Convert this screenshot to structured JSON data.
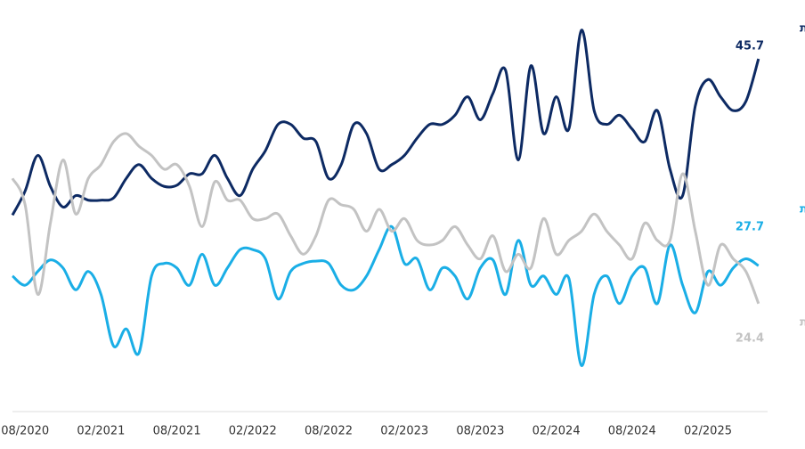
{
  "chart_data": {
    "type": "line",
    "categories": [
      null,
      "08/2020",
      null,
      null,
      null,
      null,
      null,
      "02/2021",
      null,
      null,
      null,
      null,
      null,
      "08/2021",
      null,
      null,
      null,
      null,
      null,
      "02/2022",
      null,
      null,
      null,
      null,
      null,
      "08/2022",
      null,
      null,
      null,
      null,
      null,
      "02/2023",
      null,
      null,
      null,
      null,
      null,
      "08/2023",
      null,
      null,
      null,
      null,
      null,
      "02/2024",
      null,
      null,
      null,
      null,
      null,
      "08/2024",
      null,
      null,
      null,
      null,
      null,
      "02/2025",
      null,
      null,
      null,
      null
    ],
    "ylim": [
      15,
      48.5
    ],
    "series": [
      {
        "name": "הכנסות=הוצאות",
        "color": "#0d2a63",
        "values": [
          32.1,
          34.2,
          37.3,
          34.6,
          32.8,
          33.8,
          33.4,
          33.4,
          33.6,
          35.3,
          36.5,
          35.3,
          34.6,
          34.7,
          35.7,
          35.7,
          37.3,
          35.3,
          33.8,
          36.1,
          37.7,
          40.0,
          40.0,
          38.8,
          38.5,
          35.3,
          36.5,
          40.0,
          39.2,
          36.1,
          36.5,
          37.3,
          38.8,
          40.0,
          40.0,
          40.8,
          42.4,
          40.4,
          42.7,
          44.7,
          36.9,
          45.1,
          39.2,
          42.4,
          39.6,
          48.2,
          41.2,
          40.0,
          40.8,
          39.6,
          38.5,
          41.2,
          36.1,
          33.8,
          41.6,
          43.9,
          42.4,
          41.2,
          42.0,
          45.7
        ]
      },
      {
        "name": "הכנסות>הוצאות",
        "color": "#1aaee6",
        "values": [
          26.8,
          26.0,
          27.2,
          28.2,
          27.5,
          25.6,
          27.2,
          25.2,
          20.7,
          22.2,
          20.1,
          26.8,
          27.9,
          27.5,
          26.0,
          28.7,
          26.0,
          27.5,
          29.1,
          29.1,
          28.3,
          24.8,
          27.2,
          27.9,
          28.1,
          27.9,
          26.0,
          25.6,
          26.8,
          29.1,
          31.1,
          27.9,
          28.3,
          25.6,
          27.5,
          26.8,
          24.8,
          27.5,
          28.2,
          25.2,
          29.9,
          26.0,
          26.8,
          25.2,
          26.6,
          19.0,
          25.2,
          26.8,
          24.4,
          26.8,
          27.5,
          24.4,
          29.5,
          26.0,
          23.6,
          27.2,
          26.0,
          27.5,
          28.3,
          27.7
        ]
      },
      {
        "name": "הכנסות<הוצאות",
        "color": "#c3c3c3",
        "values": [
          35.3,
          33.0,
          25.2,
          31.4,
          36.9,
          32.2,
          35.3,
          36.5,
          38.5,
          39.2,
          38.1,
          37.3,
          36.1,
          36.5,
          34.6,
          31.1,
          35.0,
          33.4,
          33.4,
          31.8,
          31.8,
          32.2,
          30.3,
          28.7,
          30.3,
          33.4,
          33.0,
          32.6,
          30.7,
          32.6,
          30.7,
          31.8,
          29.9,
          29.5,
          29.9,
          31.1,
          29.5,
          28.3,
          30.3,
          27.2,
          28.7,
          27.5,
          31.8,
          28.7,
          29.9,
          30.7,
          32.2,
          30.7,
          29.5,
          28.3,
          31.4,
          29.9,
          29.9,
          35.7,
          30.7,
          26.0,
          29.5,
          28.3,
          27.2,
          24.4
        ]
      }
    ]
  }
}
